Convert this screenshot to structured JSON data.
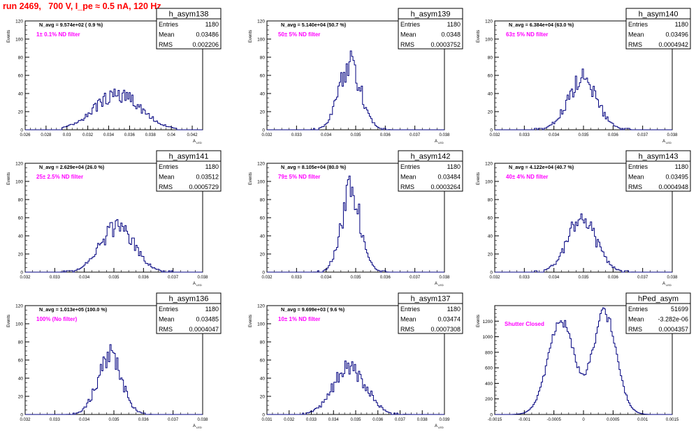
{
  "page_title": "run 2469,   700 V, I_pe ≈ 0.5 nA, 120 Hz",
  "colors": {
    "histogram_line": "#00007f",
    "filter_text": "#ff00ff",
    "title_text": "#ff0000",
    "frame": "#000000"
  },
  "chart_data": [
    {
      "type": "histogram",
      "stats_title": "h_asym138",
      "stats": {
        "entries": "1180",
        "mean": "0.03486",
        "rms": "0.002206"
      },
      "navg_label": "N_avg = 9.574e+02 ( 0.9 %)",
      "filter_label": "1± 0.1% ND filter",
      "ylabel": "Events",
      "xlabel": "A",
      "xlabel_sub": "LED",
      "xlim": [
        0.026,
        0.043
      ],
      "ylim": [
        0,
        120
      ],
      "xticks": [
        "0.026",
        "0.028",
        "0.03",
        "0.032",
        "0.034",
        "0.036",
        "0.038",
        "0.04",
        "0.042"
      ],
      "xtick_values": [
        0.026,
        0.028,
        0.03,
        0.032,
        0.034,
        0.036,
        0.038,
        0.04,
        0.042
      ],
      "yticks": [
        "0",
        "20",
        "40",
        "60",
        "80",
        "100",
        "120"
      ],
      "ytick_values": [
        0,
        20,
        40,
        60,
        80,
        100,
        120
      ],
      "mu": 0.03486,
      "sigma": 0.00221,
      "peak": 39,
      "range": [
        0.0295,
        0.0405
      ]
    },
    {
      "type": "histogram",
      "stats_title": "h_asym139",
      "stats": {
        "entries": "1180",
        "mean": "0.0348",
        "rms": "0.0003752"
      },
      "navg_label": "N_avg = 5.140e+04 (50.7 %)",
      "filter_label": "50± 5% ND filter",
      "ylabel": "Events",
      "xlabel": "A",
      "xlabel_sub": "LED",
      "xlim": [
        0.032,
        0.038
      ],
      "ylim": [
        0,
        120
      ],
      "xticks": [
        "0.032",
        "0.033",
        "0.034",
        "0.035",
        "0.036",
        "0.037",
        "0.038"
      ],
      "xtick_values": [
        0.032,
        0.033,
        0.034,
        0.035,
        0.036,
        0.037,
        0.038
      ],
      "yticks": [
        "0",
        "20",
        "40",
        "60",
        "80",
        "100",
        "120"
      ],
      "ytick_values": [
        0,
        20,
        40,
        60,
        80,
        100,
        120
      ],
      "mu": 0.0348,
      "sigma": 0.000375,
      "peak": 72,
      "range": [
        0.0335,
        0.0362
      ]
    },
    {
      "type": "histogram",
      "stats_title": "h_asym140",
      "stats": {
        "entries": "1180",
        "mean": "0.03496",
        "rms": "0.0004942"
      },
      "navg_label": "N_avg = 6.384e+04 (63.0 %)",
      "filter_label": "63± 5% ND filter",
      "ylabel": "Events",
      "xlabel": "A",
      "xlabel_sub": "LED",
      "xlim": [
        0.032,
        0.038
      ],
      "ylim": [
        0,
        120
      ],
      "xticks": [
        "0.032",
        "0.033",
        "0.034",
        "0.035",
        "0.036",
        "0.037",
        "0.038"
      ],
      "xtick_values": [
        0.032,
        0.033,
        0.034,
        0.035,
        0.036,
        0.037,
        0.038
      ],
      "yticks": [
        "0",
        "20",
        "40",
        "60",
        "80",
        "100",
        "120"
      ],
      "ytick_values": [
        0,
        20,
        40,
        60,
        80,
        100,
        120
      ],
      "mu": 0.03496,
      "sigma": 0.00049,
      "peak": 55,
      "range": [
        0.0333,
        0.0366
      ]
    },
    {
      "type": "histogram",
      "stats_title": "h_asym141",
      "stats": {
        "entries": "1180",
        "mean": "0.03512",
        "rms": "0.0005729"
      },
      "navg_label": "N_avg = 2.629e+04 (26.0 %)",
      "filter_label": "25± 2.5% ND filter",
      "ylabel": "Events",
      "xlabel": "A",
      "xlabel_sub": "LED",
      "xlim": [
        0.032,
        0.038
      ],
      "ylim": [
        0,
        120
      ],
      "xticks": [
        "0.032",
        "0.033",
        "0.034",
        "0.035",
        "0.036",
        "0.037",
        "0.038"
      ],
      "xtick_values": [
        0.032,
        0.033,
        0.034,
        0.035,
        0.036,
        0.037,
        0.038
      ],
      "yticks": [
        "0",
        "20",
        "40",
        "60",
        "80",
        "100",
        "120"
      ],
      "ytick_values": [
        0,
        20,
        40,
        60,
        80,
        100,
        120
      ],
      "mu": 0.03512,
      "sigma": 0.00057,
      "peak": 50,
      "range": [
        0.0332,
        0.037
      ]
    },
    {
      "type": "histogram",
      "stats_title": "h_asym142",
      "stats": {
        "entries": "1180",
        "mean": "0.03484",
        "rms": "0.0003264"
      },
      "navg_label": "N_avg = 8.105e+04 (80.0 %)",
      "filter_label": "79± 5% ND filter",
      "ylabel": "Events",
      "xlabel": "A",
      "xlabel_sub": "LED",
      "xlim": [
        0.032,
        0.038
      ],
      "ylim": [
        0,
        120
      ],
      "xticks": [
        "0.032",
        "0.033",
        "0.034",
        "0.035",
        "0.036",
        "0.037",
        "0.038"
      ],
      "xtick_values": [
        0.032,
        0.033,
        0.034,
        0.035,
        0.036,
        0.037,
        0.038
      ],
      "yticks": [
        "0",
        "20",
        "40",
        "60",
        "80",
        "100",
        "120"
      ],
      "ytick_values": [
        0,
        20,
        40,
        60,
        80,
        100,
        120
      ],
      "mu": 0.03484,
      "sigma": 0.00033,
      "peak": 88,
      "range": [
        0.0335,
        0.0361
      ]
    },
    {
      "type": "histogram",
      "stats_title": "h_asym143",
      "stats": {
        "entries": "1180",
        "mean": "0.03495",
        "rms": "0.0004948"
      },
      "navg_label": "N_avg = 4.122e+04 (40.7 %)",
      "filter_label": "40± 4% ND filter",
      "ylabel": "Events",
      "xlabel": "A",
      "xlabel_sub": "LED",
      "xlim": [
        0.032,
        0.038
      ],
      "ylim": [
        0,
        120
      ],
      "xticks": [
        "0.032",
        "0.033",
        "0.034",
        "0.035",
        "0.036",
        "0.037",
        "0.038"
      ],
      "xtick_values": [
        0.032,
        0.033,
        0.034,
        0.035,
        0.036,
        0.037,
        0.038
      ],
      "yticks": [
        "0",
        "20",
        "40",
        "60",
        "80",
        "100",
        "120"
      ],
      "ytick_values": [
        0,
        20,
        40,
        60,
        80,
        100,
        120
      ],
      "mu": 0.03495,
      "sigma": 0.00049,
      "peak": 58,
      "range": [
        0.0333,
        0.0367
      ]
    },
    {
      "type": "histogram",
      "stats_title": "h_asym136",
      "stats": {
        "entries": "1180",
        "mean": "0.03485",
        "rms": "0.0004047"
      },
      "navg_label": "N_avg = 1.013e+05 (100.0 %)",
      "filter_label": "100% (No filter)",
      "ylabel": "Events",
      "xlabel": "A",
      "xlabel_sub": "LED",
      "xlim": [
        0.032,
        0.038
      ],
      "ylim": [
        0,
        120
      ],
      "xticks": [
        "0.032",
        "0.033",
        "0.034",
        "0.035",
        "0.036",
        "0.037",
        "0.038"
      ],
      "xtick_values": [
        0.032,
        0.033,
        0.034,
        0.035,
        0.036,
        0.037,
        0.038
      ],
      "yticks": [
        "0",
        "20",
        "40",
        "60",
        "80",
        "100",
        "120"
      ],
      "ytick_values": [
        0,
        20,
        40,
        60,
        80,
        100,
        120
      ],
      "mu": 0.03485,
      "sigma": 0.0004,
      "peak": 65,
      "range": [
        0.0334,
        0.0363
      ]
    },
    {
      "type": "histogram",
      "stats_title": "h_asym137",
      "stats": {
        "entries": "1180",
        "mean": "0.03474",
        "rms": "0.0007308"
      },
      "navg_label": "N_avg = 9.699e+03 ( 9.6 %)",
      "filter_label": "10± 1% ND filter",
      "ylabel": "Events",
      "xlabel": "A",
      "xlabel_sub": "LED",
      "xlim": [
        0.031,
        0.039
      ],
      "ylim": [
        0,
        120
      ],
      "xticks": [
        "0.031",
        "0.032",
        "0.033",
        "0.034",
        "0.035",
        "0.036",
        "0.037",
        "0.038",
        "0.039"
      ],
      "xtick_values": [
        0.031,
        0.032,
        0.033,
        0.034,
        0.035,
        0.036,
        0.037,
        0.038,
        0.039
      ],
      "yticks": [
        "0",
        "20",
        "40",
        "60",
        "80",
        "100",
        "120"
      ],
      "ytick_values": [
        0,
        20,
        40,
        60,
        80,
        100,
        120
      ],
      "mu": 0.03474,
      "sigma": 0.00073,
      "peak": 52,
      "range": [
        0.0325,
        0.0375
      ]
    },
    {
      "type": "histogram",
      "stats_title": "hPed_asym",
      "stats": {
        "entries": "51699",
        "mean": "-3.282e-06",
        "rms": "0.0004357"
      },
      "navg_label": "",
      "filter_label": "Shutter Closed",
      "ylabel": "Events",
      "xlabel": "",
      "xlabel_sub": "",
      "xlim": [
        -0.0015,
        0.0015
      ],
      "ylim": [
        0,
        1400
      ],
      "xticks": [
        "-0.0015",
        "-0.001",
        "-0.0005",
        "0",
        "0.0005",
        "0.001",
        "0.0015"
      ],
      "xtick_values": [
        -0.0015,
        -0.001,
        -0.0005,
        0,
        0.0005,
        0.001,
        0.0015
      ],
      "yticks": [
        "0",
        "200",
        "400",
        "600",
        "800",
        "1000",
        "1200"
      ],
      "ytick_values": [
        0,
        200,
        400,
        600,
        800,
        1000,
        1200
      ],
      "bimodal": true,
      "modes": [
        {
          "mu": -0.00038,
          "sigma": 0.00022,
          "peak": 1200
        },
        {
          "mu": 0.00036,
          "sigma": 0.0002,
          "peak": 1300
        }
      ],
      "range": [
        -0.0012,
        0.0011
      ]
    }
  ]
}
